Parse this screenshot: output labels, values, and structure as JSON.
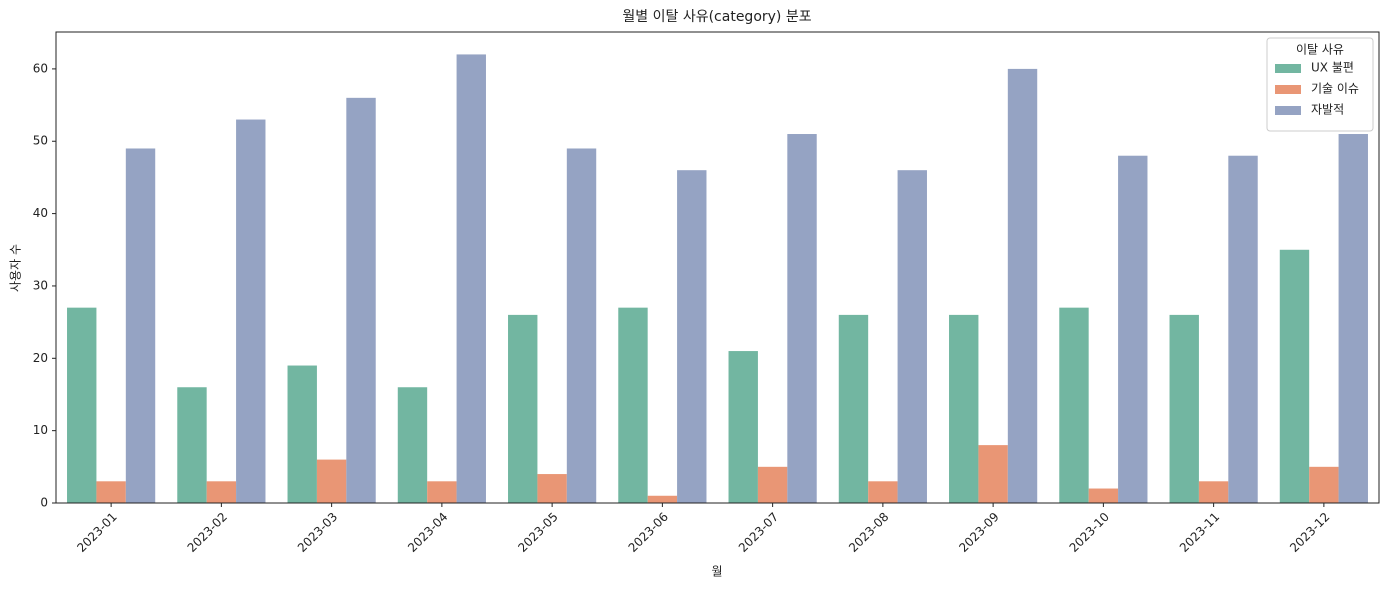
{
  "chart_data": {
    "type": "bar",
    "title": "월별 이탈 사유(category) 분포",
    "x_label": "월",
    "y_label": "사용자 수",
    "categories": [
      "2023-01",
      "2023-02",
      "2023-03",
      "2023-04",
      "2023-05",
      "2023-06",
      "2023-07",
      "2023-08",
      "2023-09",
      "2023-10",
      "2023-11",
      "2023-12"
    ],
    "series": [
      {
        "name": "UX 불편",
        "color": "#72b6a1",
        "values": [
          27,
          16,
          19,
          16,
          26,
          27,
          21,
          26,
          26,
          27,
          26,
          35
        ]
      },
      {
        "name": "기술 이슈",
        "color": "#e99675",
        "values": [
          3,
          3,
          6,
          3,
          4,
          1,
          5,
          3,
          8,
          2,
          3,
          5
        ]
      },
      {
        "name": "자발적",
        "color": "#95a3c3",
        "values": [
          49,
          53,
          56,
          62,
          49,
          46,
          51,
          46,
          60,
          48,
          48,
          51
        ]
      }
    ],
    "legend_title": "이탈 사유",
    "legend_position": "upper right",
    "ylim": [
      0,
      65.1
    ],
    "yticks": [
      0,
      10,
      20,
      30,
      40,
      50,
      60
    ],
    "grid": false
  }
}
